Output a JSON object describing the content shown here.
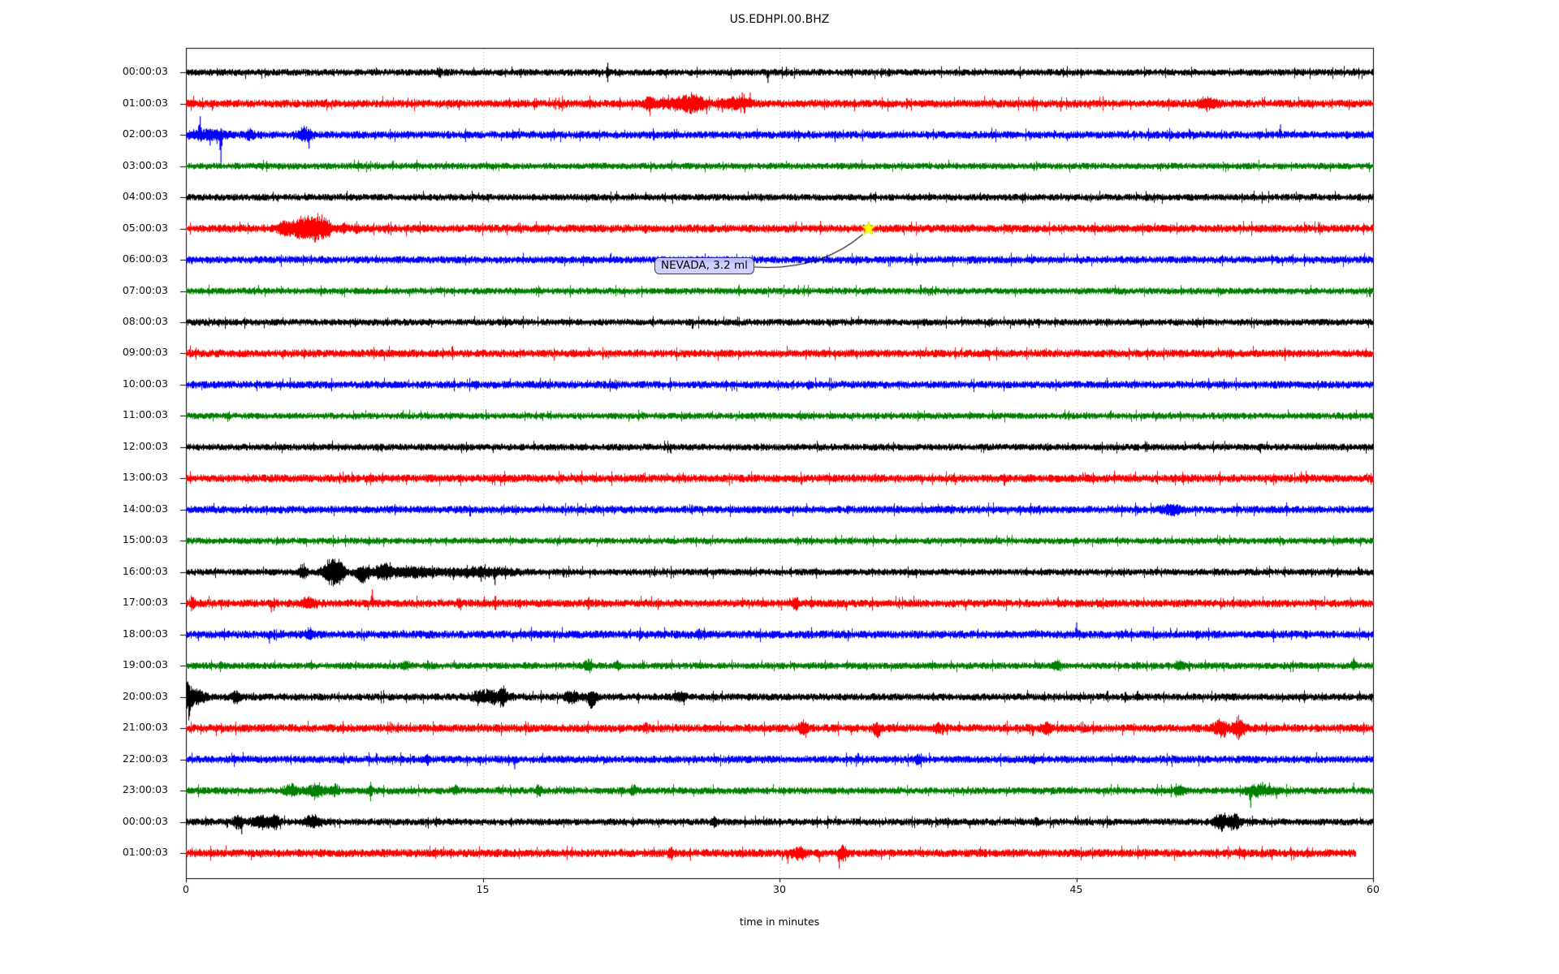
{
  "figure": {
    "title": "US.EDHPI.00.BHZ",
    "background": "#ffffff"
  },
  "chart_data": {
    "type": "line",
    "subtype": "helicorder-dayplot",
    "title": "US.EDHPI.00.BHZ",
    "xlabel": "time in minutes",
    "xlim": [
      0,
      60
    ],
    "x_ticks": [
      0,
      15,
      30,
      45,
      60
    ],
    "grid_x_minutes": [
      15,
      30,
      45
    ],
    "grid_on": true,
    "grid_color": "#b0b0b0",
    "axis_color": "#000000",
    "color_cycle": [
      "#000000",
      "#ff0000",
      "#0000ff",
      "#008000"
    ],
    "minutes_per_row": 60,
    "annotation": {
      "text": "NEVADA, 3.2 ml",
      "row": 5,
      "t_minutes": 34.5,
      "marker": "star",
      "marker_color": "#ffff00",
      "box_fill": "#ccccff",
      "box_border": "#3f3f3f"
    },
    "rows": [
      {
        "label": "00:00:03",
        "noise": 3.6,
        "events": [
          {
            "t": 21.3,
            "a": 12,
            "w": 0,
            "d": 0
          },
          {
            "t": 29.4,
            "a": 13,
            "w": 0,
            "d": -1
          },
          {
            "t": 12.8,
            "a": 5,
            "w": 0.08,
            "d": 0
          }
        ]
      },
      {
        "label": "01:00:03",
        "noise": 4.2,
        "events": [
          {
            "t": 23.4,
            "a": 7,
            "w": 0.15,
            "d": 0
          },
          {
            "t": 24.8,
            "a": 6,
            "w": 0.8,
            "d": 0
          },
          {
            "t": 25.6,
            "a": 9,
            "w": 0.35,
            "d": 0
          },
          {
            "t": 26.3,
            "a": 13,
            "w": 0,
            "d": -1
          },
          {
            "t": 27.1,
            "a": 11,
            "w": 0,
            "d": -1
          },
          {
            "t": 28.1,
            "a": 14,
            "w": 0,
            "d": 1
          },
          {
            "t": 28.5,
            "a": 14,
            "w": 0,
            "d": 1
          },
          {
            "t": 27.8,
            "a": 7,
            "w": 0.5,
            "d": 0
          },
          {
            "t": 51.6,
            "a": 6,
            "w": 0.35,
            "d": 0
          }
        ]
      },
      {
        "label": "02:00:03",
        "noise": 4.0,
        "events": [
          {
            "t": 0.7,
            "a": 23,
            "w": 0,
            "d": 1
          },
          {
            "t": 1.2,
            "a": 13,
            "w": 0,
            "d": -1
          },
          {
            "t": 1.55,
            "a": 11,
            "w": 0,
            "d": -1
          },
          {
            "t": 1.75,
            "a": 34,
            "w": 0,
            "d": -1
          },
          {
            "t": 1.1,
            "a": 5,
            "w": 0.7,
            "d": 0
          },
          {
            "t": 3.2,
            "a": 5,
            "w": 0.15,
            "d": 0
          },
          {
            "t": 6.0,
            "a": 8,
            "w": 0.25,
            "d": 0
          },
          {
            "t": 6.2,
            "a": 17,
            "w": 0,
            "d": -1
          },
          {
            "t": 55.3,
            "a": 13,
            "w": 0,
            "d": 1
          }
        ]
      },
      {
        "label": "03:00:03",
        "noise": 3.5,
        "events": []
      },
      {
        "label": "04:00:03",
        "noise": 3.6,
        "events": []
      },
      {
        "label": "05:00:03",
        "noise": 4.2,
        "events": [
          {
            "t": 4.9,
            "a": 8,
            "w": 0.2,
            "d": 0
          },
          {
            "t": 5.8,
            "a": 13,
            "w": 0.4,
            "d": 0
          },
          {
            "t": 6.6,
            "a": 14,
            "w": 0.3,
            "d": 0
          },
          {
            "t": 7.1,
            "a": 10,
            "w": 0.15,
            "d": 0
          },
          {
            "t": 8.0,
            "a": 7,
            "w": 0.08,
            "d": 0
          },
          {
            "t": 8.6,
            "a": 6,
            "w": 0.08,
            "d": 0
          }
        ]
      },
      {
        "label": "06:00:03",
        "noise": 3.9,
        "events": []
      },
      {
        "label": "07:00:03",
        "noise": 3.5,
        "events": []
      },
      {
        "label": "08:00:03",
        "noise": 3.6,
        "events": []
      },
      {
        "label": "09:00:03",
        "noise": 4.2,
        "events": []
      },
      {
        "label": "10:00:03",
        "noise": 4.0,
        "events": []
      },
      {
        "label": "11:00:03",
        "noise": 3.5,
        "events": []
      },
      {
        "label": "12:00:03",
        "noise": 3.6,
        "events": []
      },
      {
        "label": "13:00:03",
        "noise": 4.2,
        "events": []
      },
      {
        "label": "14:00:03",
        "noise": 4.0,
        "events": [
          {
            "t": 49.8,
            "a": 5,
            "w": 0.4,
            "d": 0
          }
        ]
      },
      {
        "label": "15:00:03",
        "noise": 3.5,
        "events": []
      },
      {
        "label": "16:00:03",
        "noise": 3.6,
        "events": [
          {
            "t": 5.9,
            "a": 8,
            "w": 0.15,
            "d": 0
          },
          {
            "t": 7.3,
            "a": 16,
            "w": 0.3,
            "d": 0
          },
          {
            "t": 7.75,
            "a": 14,
            "w": 0.18,
            "d": 0
          },
          {
            "t": 8.9,
            "a": 12,
            "w": 0.25,
            "d": -1
          },
          {
            "t": 9.9,
            "a": 9,
            "w": 0.25,
            "d": 0
          },
          {
            "t": 11.3,
            "a": 6,
            "w": 1.0,
            "d": 0
          },
          {
            "t": 13.5,
            "a": 10,
            "w": 0,
            "d": -1
          },
          {
            "t": 14.9,
            "a": 12,
            "w": 0,
            "d": -1
          },
          {
            "t": 15.6,
            "a": 16,
            "w": 0,
            "d": -1
          },
          {
            "t": 14.8,
            "a": 5,
            "w": 1.2,
            "d": 0
          }
        ]
      },
      {
        "label": "17:00:03",
        "noise": 4.2,
        "events": [
          {
            "t": 0.3,
            "a": 8,
            "w": 0.08,
            "d": 0
          },
          {
            "t": 4.3,
            "a": 11,
            "w": 0,
            "d": -1
          },
          {
            "t": 6.2,
            "a": 7,
            "w": 0.2,
            "d": 0
          },
          {
            "t": 9.4,
            "a": 17,
            "w": 0,
            "d": 1
          },
          {
            "t": 13.8,
            "a": 5,
            "w": 0.08,
            "d": 0
          },
          {
            "t": 30.8,
            "a": 7,
            "w": 0.12,
            "d": 0
          },
          {
            "t": 39.4,
            "a": 9,
            "w": 0,
            "d": -1
          }
        ]
      },
      {
        "label": "18:00:03",
        "noise": 4.3,
        "events": [
          {
            "t": 4.2,
            "a": 11,
            "w": 0,
            "d": -1
          },
          {
            "t": 6.2,
            "a": 6,
            "w": 0.12,
            "d": 0
          },
          {
            "t": 25.9,
            "a": 5,
            "w": 0.08,
            "d": 0
          },
          {
            "t": 45.0,
            "a": 15,
            "w": 0,
            "d": 1
          }
        ]
      },
      {
        "label": "19:00:03",
        "noise": 3.6,
        "events": [
          {
            "t": 11.1,
            "a": 6,
            "w": 0.12,
            "d": 0
          },
          {
            "t": 20.3,
            "a": 7,
            "w": 0.12,
            "d": 0
          },
          {
            "t": 21.8,
            "a": 6,
            "w": 0.08,
            "d": 0
          },
          {
            "t": 44.0,
            "a": 6,
            "w": 0.12,
            "d": 0
          },
          {
            "t": 50.2,
            "a": 5,
            "w": 0.15,
            "d": 0
          },
          {
            "t": 59.0,
            "a": 7,
            "w": 0.08,
            "d": 1
          }
        ]
      },
      {
        "label": "20:00:03",
        "noise": 3.8,
        "events": [
          {
            "t": 0.1,
            "a": 27,
            "w": 0.1,
            "d": 0
          },
          {
            "t": 0.5,
            "a": 10,
            "w": 0.3,
            "d": 0
          },
          {
            "t": 2.5,
            "a": 7,
            "w": 0.15,
            "d": 0
          },
          {
            "t": 15.3,
            "a": 8,
            "w": 0.6,
            "d": 0
          },
          {
            "t": 16.0,
            "a": 11,
            "w": 0.12,
            "d": 0
          },
          {
            "t": 19.5,
            "a": 7,
            "w": 0.25,
            "d": 0
          },
          {
            "t": 20.5,
            "a": 13,
            "w": 0.15,
            "d": -1
          },
          {
            "t": 25.0,
            "a": 5,
            "w": 0.15,
            "d": 0
          }
        ]
      },
      {
        "label": "21:00:03",
        "noise": 4.3,
        "events": [
          {
            "t": 23.2,
            "a": 5,
            "w": 0.08,
            "d": 0
          },
          {
            "t": 31.2,
            "a": 8,
            "w": 0.15,
            "d": 0
          },
          {
            "t": 34.9,
            "a": 10,
            "w": 0.12,
            "d": -1
          },
          {
            "t": 38.0,
            "a": 6,
            "w": 0.08,
            "d": 0
          },
          {
            "t": 43.5,
            "a": 8,
            "w": 0.15,
            "d": 0
          },
          {
            "t": 52.3,
            "a": 10,
            "w": 0.25,
            "d": 0
          },
          {
            "t": 53.2,
            "a": 13,
            "w": 0.2,
            "d": 0
          }
        ]
      },
      {
        "label": "22:00:03",
        "noise": 4.0,
        "events": [
          {
            "t": 12.2,
            "a": 5,
            "w": 0.08,
            "d": 0
          },
          {
            "t": 16.6,
            "a": 12,
            "w": 0,
            "d": -1
          },
          {
            "t": 37.0,
            "a": 5,
            "w": 0.12,
            "d": 0
          },
          {
            "t": 42.8,
            "a": 5,
            "w": 0.08,
            "d": 0
          }
        ]
      },
      {
        "label": "23:00:03",
        "noise": 3.7,
        "events": [
          {
            "t": 5.3,
            "a": 7,
            "w": 0.25,
            "d": 0
          },
          {
            "t": 6.5,
            "a": 8,
            "w": 0.35,
            "d": 0
          },
          {
            "t": 7.5,
            "a": 7,
            "w": 0.15,
            "d": 0
          },
          {
            "t": 9.3,
            "a": 7,
            "w": 0.08,
            "d": 0
          },
          {
            "t": 13.6,
            "a": 5,
            "w": 0.08,
            "d": 0
          },
          {
            "t": 17.8,
            "a": 9,
            "w": 0.1,
            "d": 0
          },
          {
            "t": 22.6,
            "a": 7,
            "w": 0.1,
            "d": 0
          },
          {
            "t": 50.2,
            "a": 6,
            "w": 0.15,
            "d": 0
          },
          {
            "t": 53.8,
            "a": 21,
            "w": 0,
            "d": -1
          },
          {
            "t": 54.3,
            "a": 6,
            "w": 0.5,
            "d": 0
          },
          {
            "t": 54.4,
            "a": 11,
            "w": 0,
            "d": 1
          },
          {
            "t": 55.1,
            "a": 10,
            "w": 0,
            "d": -1
          },
          {
            "t": 59.0,
            "a": 10,
            "w": 0,
            "d": 1
          }
        ]
      },
      {
        "label": "00:00:03",
        "noise": 3.7,
        "events": [
          {
            "t": 2.6,
            "a": 9,
            "w": 0.15,
            "d": 0
          },
          {
            "t": 2.8,
            "a": 15,
            "w": 0,
            "d": -1
          },
          {
            "t": 3.8,
            "a": 7,
            "w": 0.4,
            "d": 0
          },
          {
            "t": 4.5,
            "a": 9,
            "w": 0.12,
            "d": 0
          },
          {
            "t": 6.4,
            "a": 7,
            "w": 0.3,
            "d": 0
          },
          {
            "t": 26.7,
            "a": 6,
            "w": 0.08,
            "d": 0
          },
          {
            "t": 43.0,
            "a": 4,
            "w": 0.08,
            "d": 0
          },
          {
            "t": 52.3,
            "a": 10,
            "w": 0.25,
            "d": 0
          },
          {
            "t": 53.0,
            "a": 11,
            "w": 0.2,
            "d": 0
          }
        ]
      },
      {
        "label": "01:00:03",
        "noise": 4.3,
        "end": 59.1,
        "events": [
          {
            "t": 24.5,
            "a": 5,
            "w": 0.12,
            "d": 0
          },
          {
            "t": 30.4,
            "a": 13,
            "w": 0,
            "d": -1
          },
          {
            "t": 31.0,
            "a": 8,
            "w": 0.25,
            "d": 0
          },
          {
            "t": 32.0,
            "a": 11,
            "w": 0,
            "d": -1
          },
          {
            "t": 33.0,
            "a": 19,
            "w": 0,
            "d": -1
          },
          {
            "t": 33.2,
            "a": 10,
            "w": 0.15,
            "d": 0
          }
        ]
      }
    ]
  }
}
